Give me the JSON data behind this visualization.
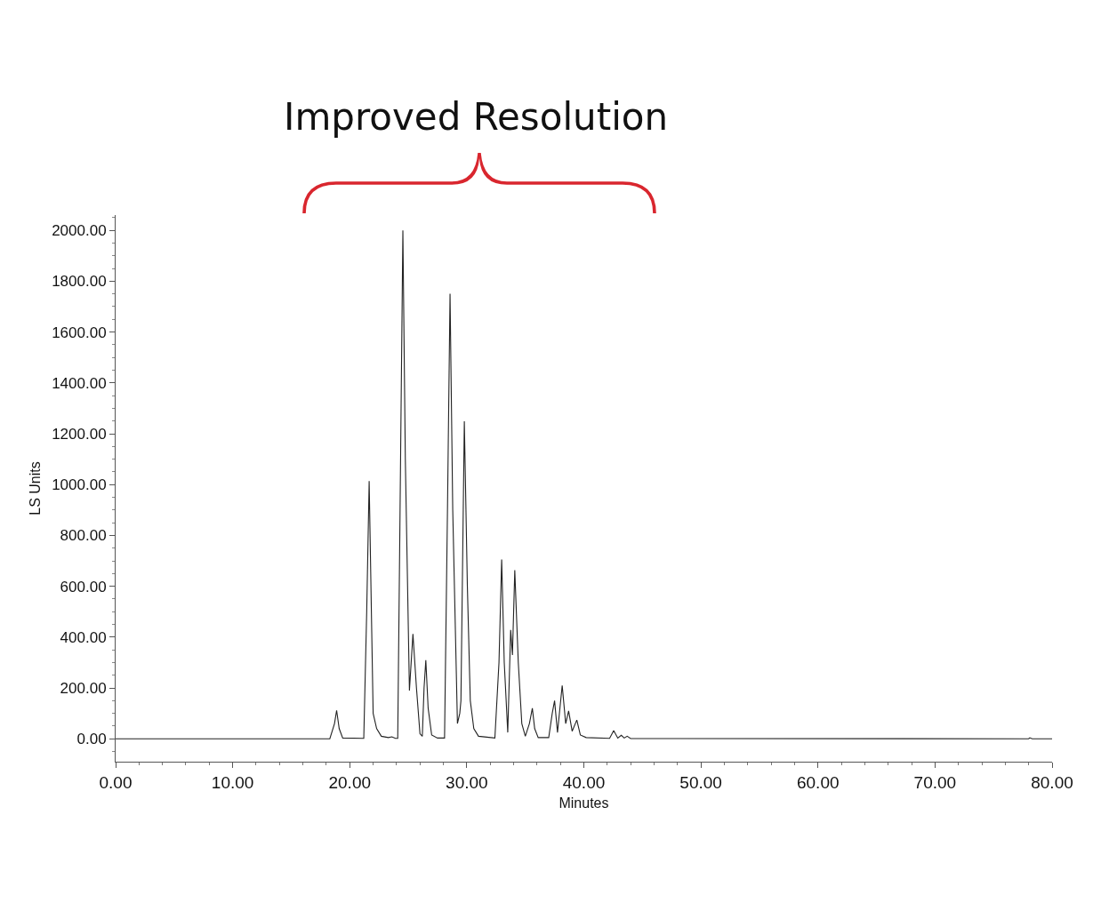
{
  "chart_data": {
    "type": "line",
    "xlabel": "Minutes",
    "ylabel": "LS Units",
    "annotations": [
      "Improved Resolution"
    ],
    "x": [
      0,
      18.3,
      18.7,
      18.88,
      19.1,
      19.4,
      21.2,
      21.45,
      21.66,
      21.85,
      22.0,
      22.3,
      22.7,
      23.3,
      23.6,
      23.9,
      24.1,
      24.3,
      24.54,
      24.75,
      25.1,
      25.4,
      25.7,
      26.0,
      26.2,
      26.35,
      26.5,
      26.7,
      27.0,
      27.5,
      28.1,
      28.35,
      28.57,
      28.8,
      29.2,
      29.4,
      29.5,
      29.79,
      30.05,
      30.3,
      30.6,
      31.0,
      32.4,
      32.75,
      32.98,
      33.2,
      33.5,
      33.75,
      33.9,
      34.1,
      34.4,
      34.7,
      35.0,
      35.35,
      35.6,
      35.8,
      36.1,
      37.0,
      37.3,
      37.5,
      37.75,
      38.15,
      38.45,
      38.7,
      39.0,
      39.4,
      39.7,
      40.2,
      42.2,
      42.55,
      42.9,
      43.2,
      43.45,
      43.7,
      44.0,
      78.0,
      78.1,
      78.3,
      80
    ],
    "series": [
      {
        "color": "#222222",
        "values": [
          0,
          0,
          60,
          112,
          40,
          3,
          2,
          500,
          1014,
          500,
          100,
          40,
          10,
          5,
          8,
          2,
          2,
          900,
          2000,
          1100,
          190,
          412,
          200,
          20,
          10,
          200,
          309,
          120,
          15,
          3,
          3,
          900,
          1751,
          900,
          60,
          100,
          150,
          1249,
          600,
          150,
          40,
          10,
          3,
          300,
          705,
          300,
          25,
          428,
          330,
          663,
          300,
          60,
          10,
          60,
          120,
          40,
          5,
          5,
          100,
          150,
          25,
          210,
          60,
          110,
          30,
          74,
          15,
          5,
          2,
          32,
          3,
          14,
          3,
          10,
          1,
          0,
          4,
          0,
          0
        ]
      }
    ],
    "xlim": [
      0,
      80
    ],
    "xticks": [
      {
        "value": 0,
        "label": "0.00"
      },
      {
        "value": 10,
        "label": "10.00"
      },
      {
        "value": 20,
        "label": "20.00"
      },
      {
        "value": 30,
        "label": "30.00"
      },
      {
        "value": 40,
        "label": "40.00"
      },
      {
        "value": 50,
        "label": "50.00"
      },
      {
        "value": 60,
        "label": "60.00"
      },
      {
        "value": 70,
        "label": "70.00"
      },
      {
        "value": 80,
        "label": "80.00"
      }
    ],
    "ylim": [
      -90,
      2060
    ],
    "yticks": [
      {
        "value": 0,
        "label": "0.00"
      },
      {
        "value": 200,
        "label": "200.00"
      },
      {
        "value": 400,
        "label": "400.00"
      },
      {
        "value": 600,
        "label": "600.00"
      },
      {
        "value": 800,
        "label": "800.00"
      },
      {
        "value": 1000,
        "label": "1000.00"
      },
      {
        "value": 1200,
        "label": "1200.00"
      },
      {
        "value": 1400,
        "label": "1400.00"
      },
      {
        "value": 1600,
        "label": "1600.00"
      },
      {
        "value": 1800,
        "label": "1800.00"
      },
      {
        "value": 2000,
        "label": "2000.00"
      }
    ],
    "marker": "none",
    "line_style": "solid"
  }
}
